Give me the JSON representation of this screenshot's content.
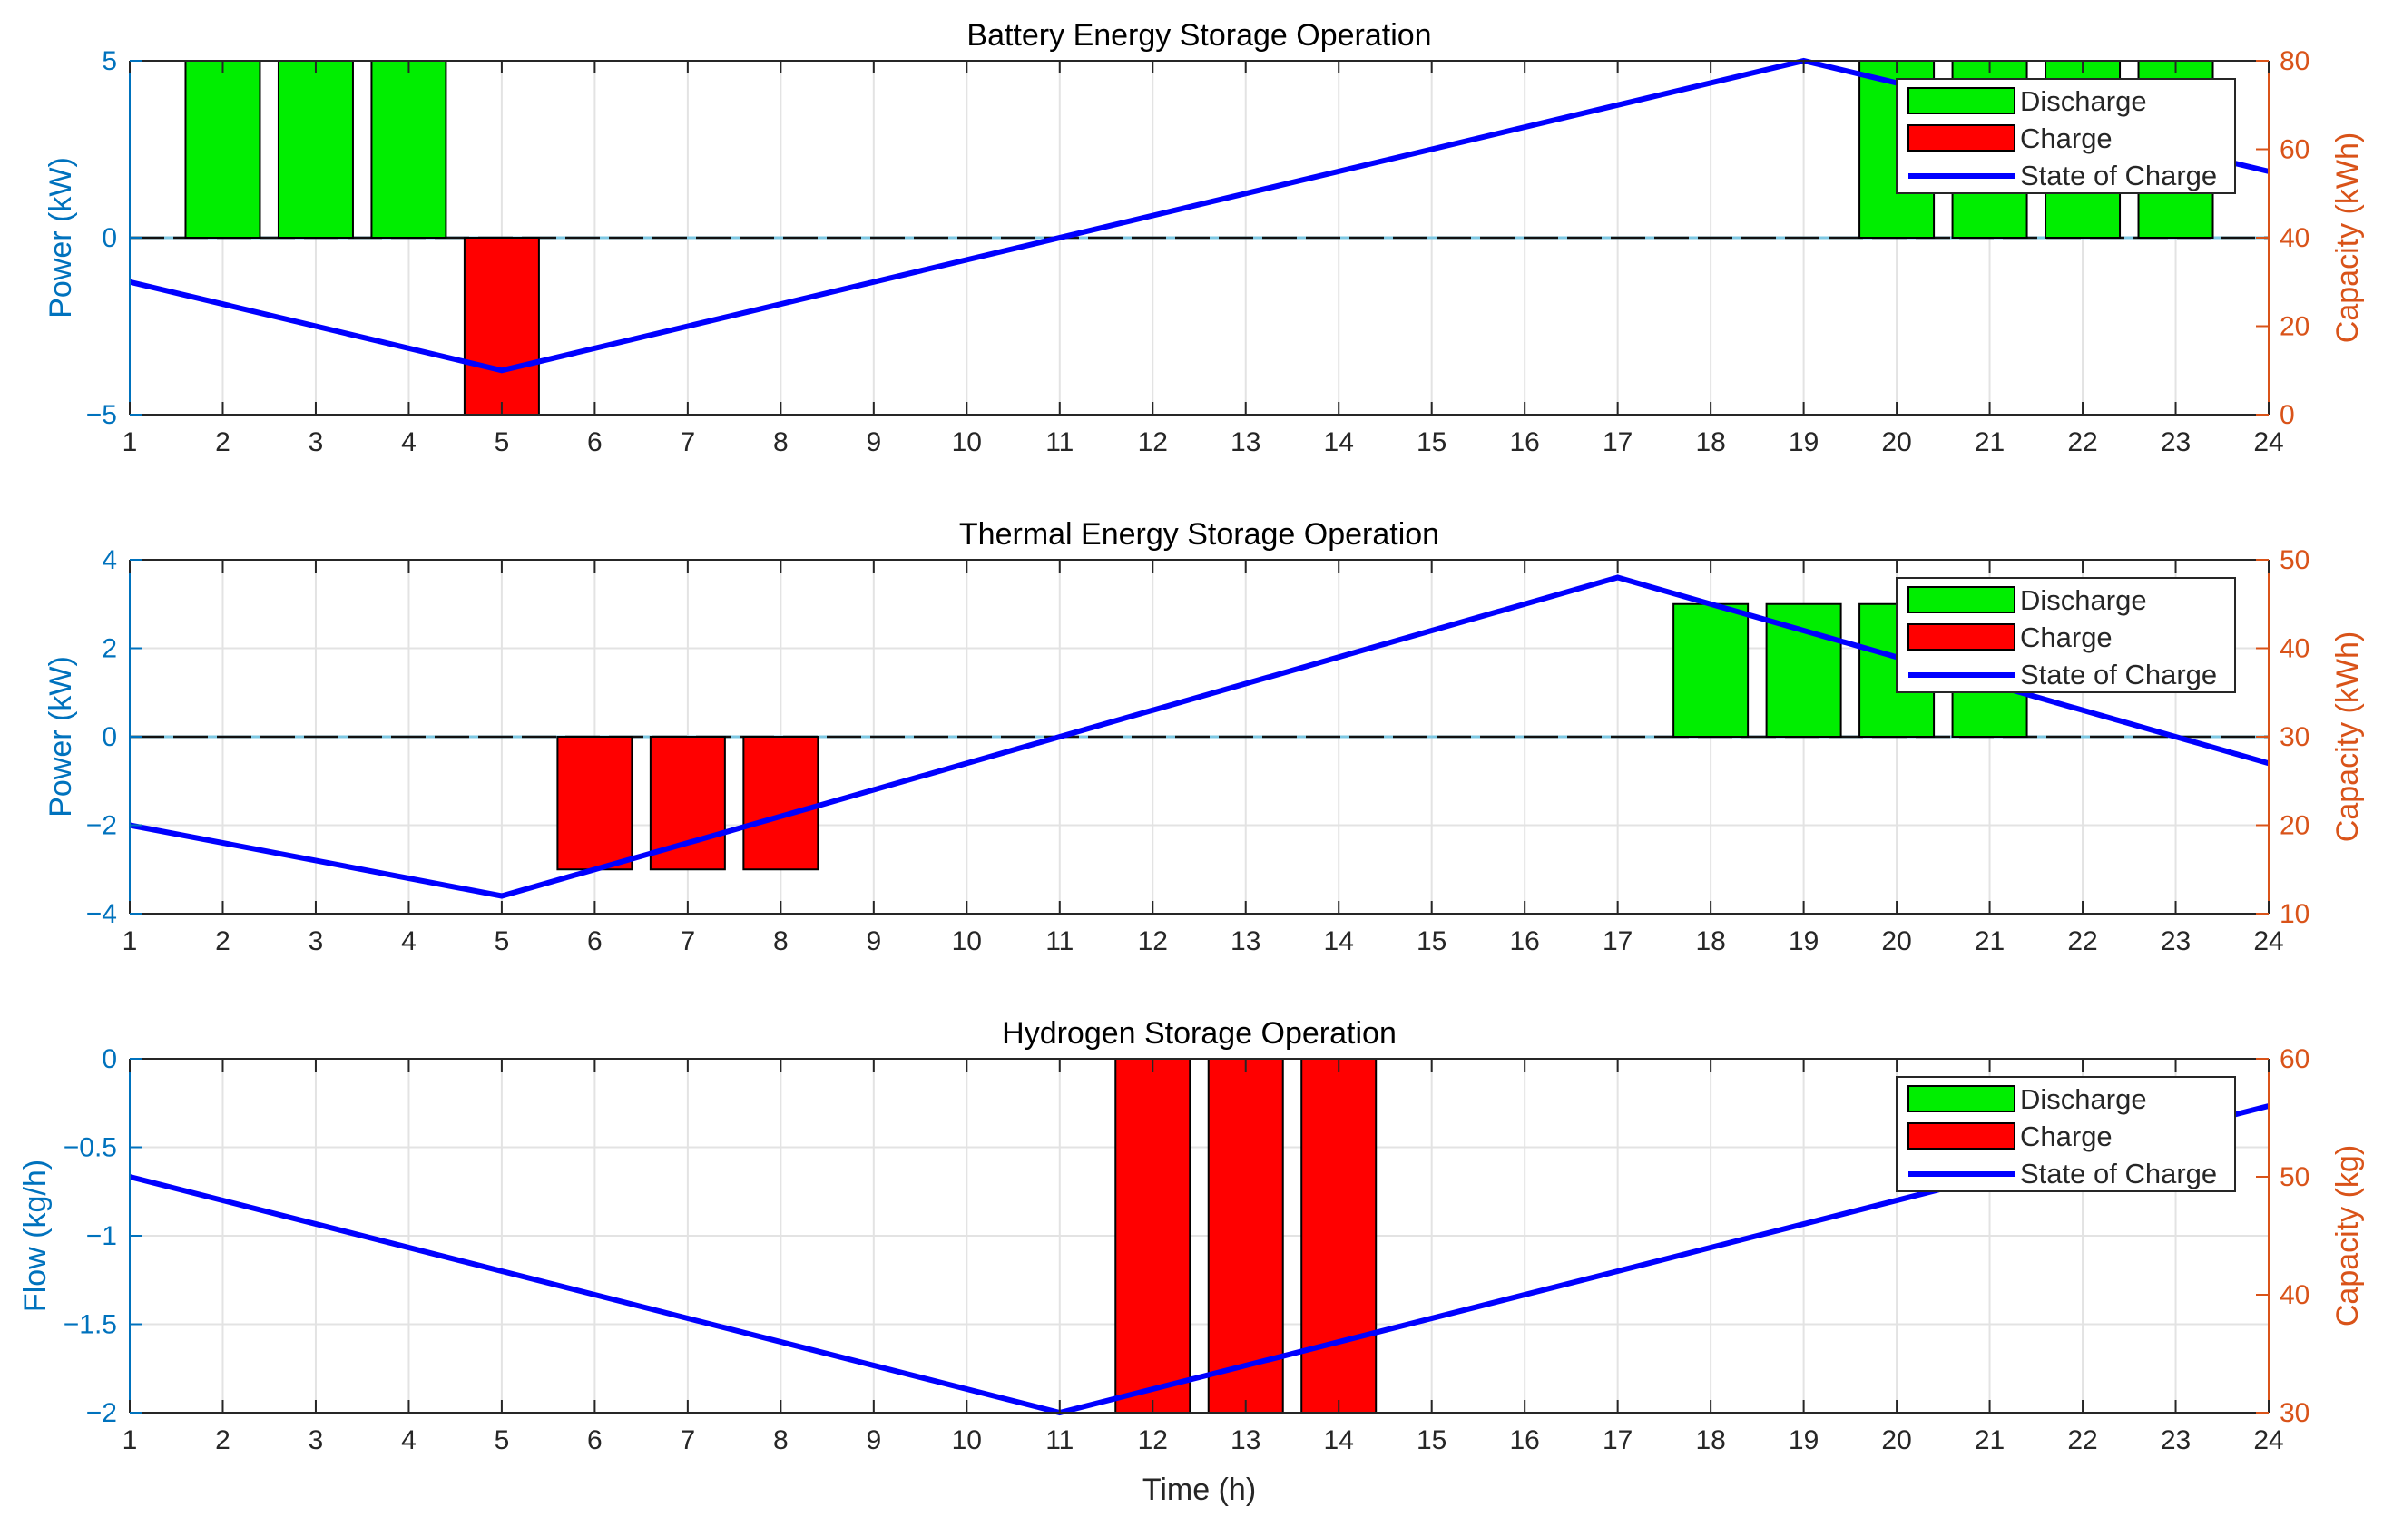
{
  "chart_data": [
    {
      "type": "bar",
      "title": "Battery Energy Storage Operation",
      "xlabel": "",
      "ylabel_left": "Power (kW)",
      "ylabel_right": "Capacity (kWh)",
      "x_ticks": [
        "1",
        "2",
        "3",
        "4",
        "5",
        "6",
        "7",
        "8",
        "9",
        "10",
        "11",
        "12",
        "13",
        "14",
        "15",
        "16",
        "17",
        "18",
        "19",
        "20",
        "21",
        "22",
        "23",
        "24"
      ],
      "xlim": [
        1,
        24
      ],
      "ylim_left": [
        -5,
        5
      ],
      "yticks_left": [
        -5,
        0,
        5
      ],
      "ylim_right": [
        0,
        80
      ],
      "yticks_right": [
        0,
        20,
        40,
        60,
        80
      ],
      "grid": true,
      "legend_position": "top-right",
      "legend": [
        "Discharge",
        "Charge",
        "State of Charge"
      ],
      "series": [
        {
          "name": "Discharge",
          "kind": "bar",
          "color": "#00ee00",
          "points": [
            [
              2,
              5
            ],
            [
              3,
              5
            ],
            [
              4,
              5
            ],
            [
              20,
              5
            ],
            [
              21,
              5
            ],
            [
              22,
              5
            ],
            [
              23,
              5
            ]
          ]
        },
        {
          "name": "Charge",
          "kind": "bar",
          "color": "#ff0000",
          "points": [
            [
              5,
              -5
            ]
          ]
        },
        {
          "name": "State of Charge",
          "kind": "line",
          "axis": "right",
          "color": "#0000ff",
          "points": [
            [
              1,
              30
            ],
            [
              5,
              10
            ],
            [
              19,
              80
            ],
            [
              24,
              55
            ]
          ]
        }
      ]
    },
    {
      "type": "bar",
      "title": "Thermal Energy Storage Operation",
      "xlabel": "",
      "ylabel_left": "Power (kW)",
      "ylabel_right": "Capacity (kWh)",
      "x_ticks": [
        "1",
        "2",
        "3",
        "4",
        "5",
        "6",
        "7",
        "8",
        "9",
        "10",
        "11",
        "12",
        "13",
        "14",
        "15",
        "16",
        "17",
        "18",
        "19",
        "20",
        "21",
        "22",
        "23",
        "24"
      ],
      "xlim": [
        1,
        24
      ],
      "ylim_left": [
        -4,
        4
      ],
      "yticks_left": [
        -4,
        -2,
        0,
        2,
        4
      ],
      "ylim_right": [
        10,
        50
      ],
      "yticks_right": [
        10,
        20,
        30,
        40,
        50
      ],
      "grid": true,
      "legend_position": "top-right",
      "legend": [
        "Discharge",
        "Charge",
        "State of Charge"
      ],
      "series": [
        {
          "name": "Discharge",
          "kind": "bar",
          "color": "#00ee00",
          "points": [
            [
              18,
              3
            ],
            [
              19,
              3
            ],
            [
              20,
              3
            ],
            [
              21,
              3
            ]
          ]
        },
        {
          "name": "Charge",
          "kind": "bar",
          "color": "#ff0000",
          "points": [
            [
              6,
              -3
            ],
            [
              7,
              -3
            ],
            [
              8,
              -3
            ]
          ]
        },
        {
          "name": "State of Charge",
          "kind": "line",
          "axis": "right",
          "color": "#0000ff",
          "points": [
            [
              1,
              20
            ],
            [
              5,
              12
            ],
            [
              17,
              48
            ],
            [
              24,
              27
            ]
          ]
        }
      ]
    },
    {
      "type": "bar",
      "title": "Hydrogen Storage Operation",
      "xlabel": "Time (h)",
      "ylabel_left": "Flow (kg/h)",
      "ylabel_right": "Capacity (kg)",
      "x_ticks": [
        "1",
        "2",
        "3",
        "4",
        "5",
        "6",
        "7",
        "8",
        "9",
        "10",
        "11",
        "12",
        "13",
        "14",
        "15",
        "16",
        "17",
        "18",
        "19",
        "20",
        "21",
        "22",
        "23",
        "24"
      ],
      "xlim": [
        1,
        24
      ],
      "ylim_left": [
        -2,
        0
      ],
      "yticks_left": [
        -2,
        -1.5,
        -1,
        -0.5,
        0
      ],
      "ytick_labels_left": [
        "−2",
        "−1.5",
        "−1",
        "−0.5",
        "0"
      ],
      "ylim_right": [
        30,
        60
      ],
      "yticks_right": [
        30,
        40,
        50,
        60
      ],
      "grid": true,
      "legend_position": "top-right",
      "legend": [
        "Discharge",
        "Charge",
        "State of Charge"
      ],
      "series": [
        {
          "name": "Discharge",
          "kind": "bar",
          "color": "#00ee00",
          "points": []
        },
        {
          "name": "Charge",
          "kind": "bar",
          "color": "#ff0000",
          "points": [
            [
              12,
              -2
            ],
            [
              13,
              -2
            ],
            [
              14,
              -2
            ]
          ]
        },
        {
          "name": "State of Charge",
          "kind": "line",
          "axis": "right",
          "color": "#0000ff",
          "points": [
            [
              1,
              50
            ],
            [
              11,
              30
            ],
            [
              24,
              56
            ]
          ]
        }
      ]
    }
  ],
  "colors": {
    "left_axis": "#0072bd",
    "right_axis": "#d95319",
    "discharge": "#00ee00",
    "charge": "#ff0000",
    "state_of_charge": "#0000ff"
  }
}
